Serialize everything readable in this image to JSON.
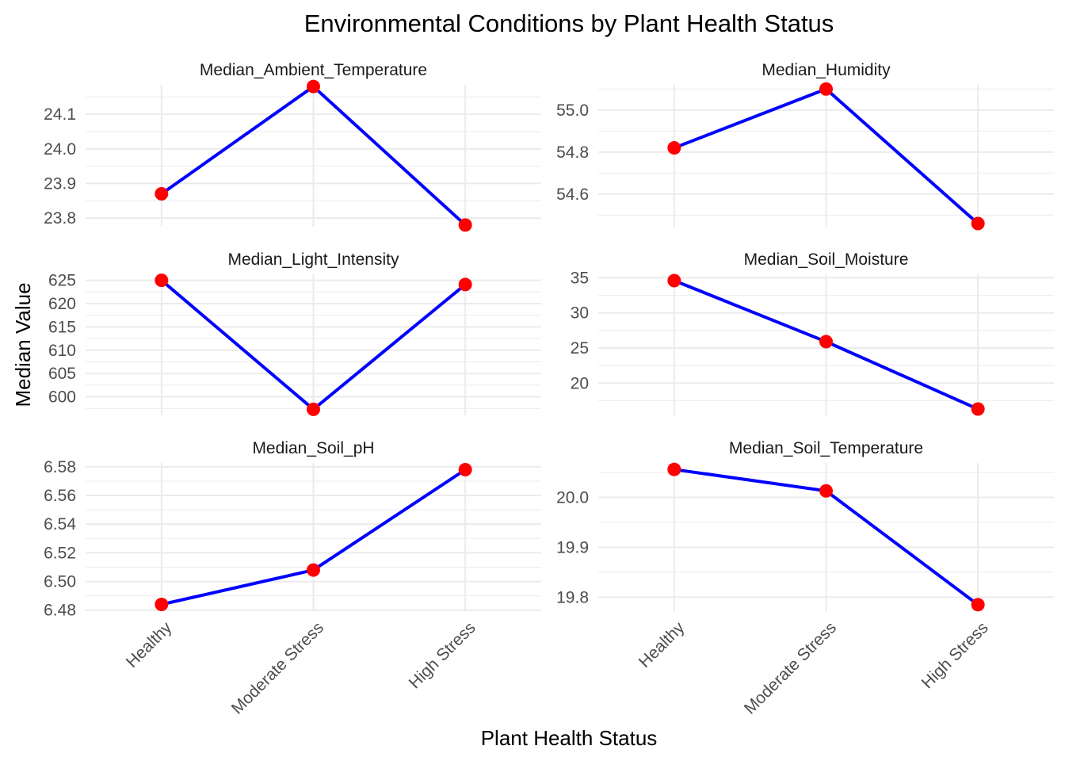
{
  "title": "Environmental Conditions by Plant Health Status",
  "xlabel": "Plant Health Status",
  "ylabel": "Median Value",
  "colors": {
    "line": "#0000ff",
    "point": "#ff0000",
    "grid": "#ebebeb",
    "tick_text": "#4d4d4d",
    "text": "#000000"
  },
  "chart_data": {
    "type": "line",
    "categories": [
      "Healthy",
      "Moderate Stress",
      "High Stress"
    ],
    "grid": true,
    "panels": [
      {
        "name": "Median_Ambient_Temperature",
        "values": [
          23.87,
          24.18,
          23.78
        ],
        "ylim": [
          23.775,
          24.185
        ],
        "ticks": [
          23.8,
          23.9,
          24.0,
          24.1
        ],
        "tick_labels": [
          "23.8",
          "23.9",
          "24.0",
          "24.1"
        ]
      },
      {
        "name": "Median_Humidity",
        "values": [
          54.82,
          55.1,
          54.46
        ],
        "ylim": [
          54.445,
          55.12
        ],
        "ticks": [
          54.6,
          54.8,
          55.0
        ],
        "tick_labels": [
          "54.6",
          "54.8",
          "55.0"
        ]
      },
      {
        "name": "Median_Light_Intensity",
        "values": [
          625.0,
          597.3,
          624.1
        ],
        "ylim": [
          596.0,
          626.3
        ],
        "ticks": [
          600,
          605,
          610,
          615,
          620,
          625
        ],
        "tick_labels": [
          "600",
          "605",
          "610",
          "615",
          "620",
          "625"
        ]
      },
      {
        "name": "Median_Soil_Moisture",
        "values": [
          34.6,
          25.9,
          16.3
        ],
        "ylim": [
          15.4,
          35.5
        ],
        "ticks": [
          20,
          25,
          30,
          35
        ],
        "tick_labels": [
          "20",
          "25",
          "30",
          "35"
        ]
      },
      {
        "name": "Median_Soil_pH",
        "values": [
          6.484,
          6.508,
          6.578
        ],
        "ylim": [
          6.4793,
          6.5827
        ],
        "ticks": [
          6.48,
          6.5,
          6.52,
          6.54,
          6.56,
          6.58
        ],
        "tick_labels": [
          "6.48",
          "6.50",
          "6.52",
          "6.54",
          "6.56",
          "6.58"
        ]
      },
      {
        "name": "Median_Soil_Temperature",
        "values": [
          20.056,
          20.013,
          19.785
        ],
        "ylim": [
          19.772,
          20.069
        ],
        "ticks": [
          19.8,
          19.9,
          20.0
        ],
        "tick_labels": [
          "19.8",
          "19.9",
          "20.0"
        ]
      }
    ]
  }
}
